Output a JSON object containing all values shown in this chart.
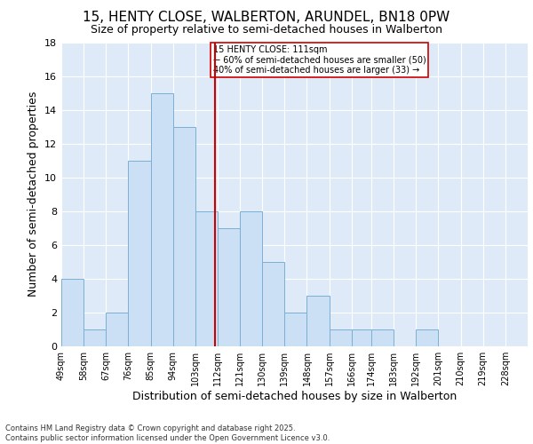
{
  "title1": "15, HENTY CLOSE, WALBERTON, ARUNDEL, BN18 0PW",
  "title2": "Size of property relative to semi-detached houses in Walberton",
  "xlabel": "Distribution of semi-detached houses by size in Walberton",
  "ylabel": "Number of semi-detached properties",
  "bin_labels": [
    "49sqm",
    "58sqm",
    "67sqm",
    "76sqm",
    "85sqm",
    "94sqm",
    "103sqm",
    "112sqm",
    "121sqm",
    "130sqm",
    "139sqm",
    "148sqm",
    "157sqm",
    "166sqm",
    "174sqm",
    "183sqm",
    "192sqm",
    "201sqm",
    "210sqm",
    "219sqm",
    "228sqm"
  ],
  "bin_edges": [
    49,
    58,
    67,
    76,
    85,
    94,
    103,
    112,
    121,
    130,
    139,
    148,
    157,
    166,
    174,
    183,
    192,
    201,
    210,
    219,
    228,
    237
  ],
  "counts": [
    4,
    1,
    2,
    11,
    15,
    13,
    8,
    7,
    8,
    5,
    2,
    3,
    1,
    1,
    1,
    0,
    1,
    0,
    0,
    0,
    0
  ],
  "bar_color": "#cce0f5",
  "bar_edgecolor": "#7aafd4",
  "vline_x": 111,
  "vline_color": "#cc0000",
  "annotation_title": "15 HENTY CLOSE: 111sqm",
  "annotation_line1": "← 60% of semi-detached houses are smaller (50)",
  "annotation_line2": "40% of semi-detached houses are larger (33) →",
  "annotation_box_edgecolor": "#cc0000",
  "ylim": [
    0,
    18
  ],
  "yticks": [
    0,
    2,
    4,
    6,
    8,
    10,
    12,
    14,
    16,
    18
  ],
  "background_color": "#deeaf7",
  "footer1": "Contains HM Land Registry data © Crown copyright and database right 2025.",
  "footer2": "Contains public sector information licensed under the Open Government Licence v3.0.",
  "title1_fontsize": 11,
  "title2_fontsize": 9,
  "xlabel_fontsize": 9,
  "ylabel_fontsize": 9
}
